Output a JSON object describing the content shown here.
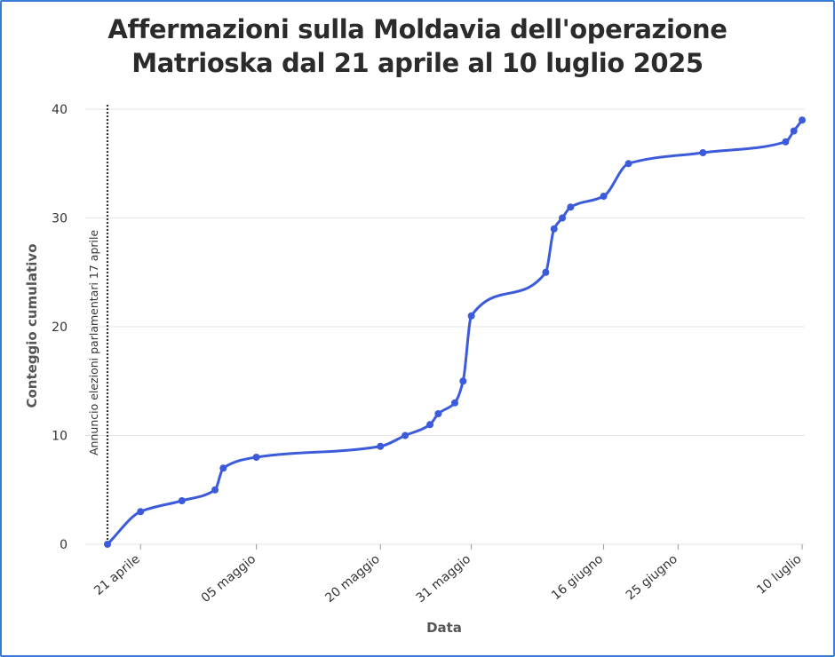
{
  "chart_data": {
    "type": "line",
    "title_line1": "Affermazioni sulla Moldavia dell'operazione",
    "title_line2": "Matrioska dal 21 aprile al 10 luglio 2025",
    "xlabel": "Data",
    "ylabel": "Conteggio cumulativo",
    "ylim": [
      0,
      40
    ],
    "yticks": [
      0,
      10,
      20,
      30,
      40
    ],
    "xticks": [
      {
        "date": "2025-04-21",
        "label": "21 aprile"
      },
      {
        "date": "2025-05-05",
        "label": "05 maggio"
      },
      {
        "date": "2025-05-20",
        "label": "20 maggio"
      },
      {
        "date": "2025-05-31",
        "label": "31 maggio"
      },
      {
        "date": "2025-06-16",
        "label": "16 giugno"
      },
      {
        "date": "2025-06-25",
        "label": "25 giugno"
      },
      {
        "date": "2025-07-10",
        "label": "10 luglio"
      }
    ],
    "xlim": [
      "2025-04-17",
      "2025-07-10"
    ],
    "grid": true,
    "line_color": "#3b5bdb",
    "annotation": {
      "date": "2025-04-17",
      "text": "Annuncio elezioni parlamentari 17 aprile"
    },
    "series": [
      {
        "points": [
          {
            "x": "2025-04-17",
            "y": 0
          },
          {
            "x": "2025-04-21",
            "y": 3
          },
          {
            "x": "2025-04-26",
            "y": 4
          },
          {
            "x": "2025-04-30",
            "y": 5
          },
          {
            "x": "2025-05-01",
            "y": 7
          },
          {
            "x": "2025-05-05",
            "y": 8
          },
          {
            "x": "2025-05-20",
            "y": 9
          },
          {
            "x": "2025-05-23",
            "y": 10
          },
          {
            "x": "2025-05-26",
            "y": 11
          },
          {
            "x": "2025-05-27",
            "y": 12
          },
          {
            "x": "2025-05-29",
            "y": 13
          },
          {
            "x": "2025-05-30",
            "y": 15
          },
          {
            "x": "2025-05-31",
            "y": 21
          },
          {
            "x": "2025-06-09",
            "y": 25
          },
          {
            "x": "2025-06-10",
            "y": 29
          },
          {
            "x": "2025-06-11",
            "y": 30
          },
          {
            "x": "2025-06-12",
            "y": 31
          },
          {
            "x": "2025-06-16",
            "y": 32
          },
          {
            "x": "2025-06-19",
            "y": 35
          },
          {
            "x": "2025-06-28",
            "y": 36
          },
          {
            "x": "2025-07-08",
            "y": 37
          },
          {
            "x": "2025-07-09",
            "y": 38
          },
          {
            "x": "2025-07-10",
            "y": 39
          }
        ]
      }
    ]
  }
}
